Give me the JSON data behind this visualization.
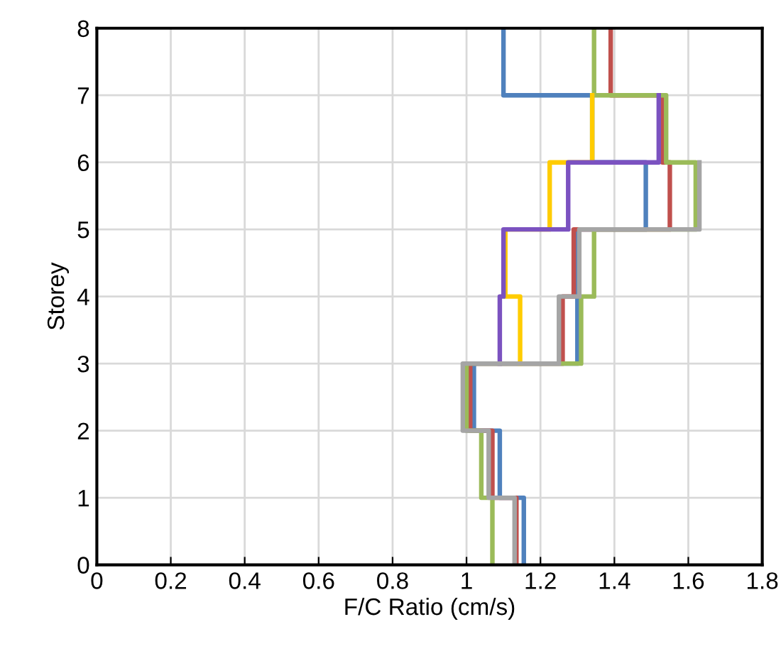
{
  "chart_data": {
    "type": "step",
    "orientation": "horizontal",
    "xlabel": "F/C Ratio (cm/s)",
    "ylabel": "Storey",
    "x": [
      0,
      1,
      2,
      3,
      4,
      5,
      6,
      7,
      8
    ],
    "series": [
      {
        "color": "#4f81bd",
        "values": [
          1.155,
          1.09,
          1.02,
          1.3,
          1.3,
          1.485,
          1.34,
          1.1,
          1.1
        ]
      },
      {
        "color": "#c0504d",
        "values": [
          1.135,
          1.07,
          1.01,
          1.26,
          1.29,
          1.55,
          1.53,
          1.39,
          1.39
        ]
      },
      {
        "color": "#9bbb59",
        "values": [
          1.07,
          1.04,
          1.0,
          1.31,
          1.345,
          1.62,
          1.54,
          1.345,
          1.345
        ]
      },
      {
        "color": "#ffcc00",
        "values": [
          null,
          null,
          null,
          1.145,
          1.105,
          1.225,
          1.34,
          1.34,
          null
        ]
      },
      {
        "color": "#7b52c0",
        "values": [
          null,
          null,
          null,
          1.09,
          1.1,
          1.275,
          1.52,
          1.52,
          null
        ]
      },
      {
        "color": "#a5a5a5",
        "values": [
          1.13,
          1.06,
          0.99,
          1.25,
          1.305,
          1.63,
          1.63,
          null,
          null
        ]
      }
    ],
    "xlim": [
      0,
      1.8
    ],
    "xticks": [
      0,
      0.2,
      0.4,
      0.6,
      0.8,
      1,
      1.2,
      1.4,
      1.6,
      1.8
    ],
    "ylim": [
      0,
      8
    ],
    "yticks": [
      0,
      1,
      2,
      3,
      4,
      5,
      6,
      7,
      8
    ],
    "grid": true,
    "line_style": "solid"
  }
}
